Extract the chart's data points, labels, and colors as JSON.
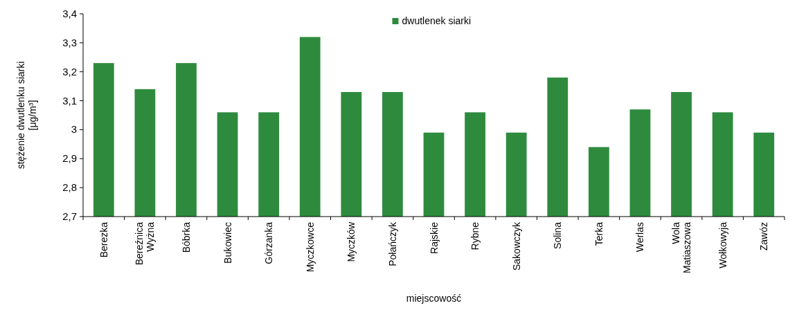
{
  "chart_data": {
    "type": "bar",
    "xlabel": "miejscowość",
    "ylabel": "stężenie dwutlenku siarki\n[μg/m³]",
    "categories": [
      "Berezka",
      "Bereźnica\nWyżna",
      "Bóbrka",
      "Bukowiec",
      "Górzanka",
      "Myczkowce",
      "Myczków",
      "Połańczyk",
      "Rajskie",
      "Rybne",
      "Sakowczyk",
      "Solina",
      "Terka",
      "Werlas",
      "Wola\nMatiaszowa",
      "Wołkowyja",
      "Zawóz"
    ],
    "series": [
      {
        "name": "dwutlenek siarki",
        "color": "#2e8b3e",
        "values": [
          3.23,
          3.14,
          3.23,
          3.06,
          3.06,
          3.32,
          3.13,
          3.13,
          2.99,
          3.06,
          2.99,
          3.18,
          2.94,
          3.07,
          3.13,
          3.06,
          2.99
        ]
      }
    ],
    "ylim": [
      2.7,
      3.4
    ],
    "yticks": [
      {
        "value": 2.7,
        "label": "2,7"
      },
      {
        "value": 2.8,
        "label": "2,8"
      },
      {
        "value": 2.9,
        "label": "2,9"
      },
      {
        "value": 3,
        "label": "3"
      },
      {
        "value": 3.1,
        "label": "3,1"
      },
      {
        "value": 3.2,
        "label": "3,2"
      },
      {
        "value": 3.3,
        "label": "3,3"
      },
      {
        "value": 3.4,
        "label": "3,4"
      }
    ],
    "grid": false,
    "legend": "top"
  }
}
